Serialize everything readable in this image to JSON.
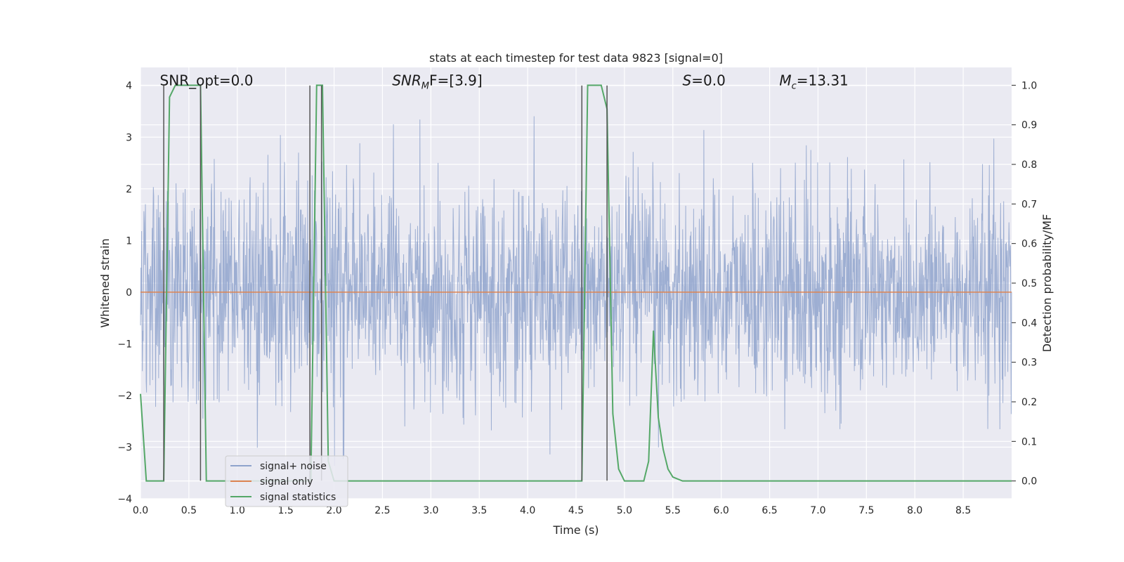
{
  "chart_data": {
    "type": "line",
    "title": "stats at each timestep for test data 9823 [signal=0]",
    "xlabel": "Time (s)",
    "ylabel": "Whitened strain",
    "y2label": "Detection probability/MF",
    "xlim": [
      0,
      9.0
    ],
    "ylim": [
      -4.0,
      4.35
    ],
    "y2lim": [
      -0.045,
      1.045
    ],
    "xticks": [
      0.0,
      0.5,
      1.0,
      1.5,
      2.0,
      2.5,
      3.0,
      3.5,
      4.0,
      4.5,
      5.0,
      5.5,
      6.0,
      6.5,
      7.0,
      7.5,
      8.0,
      8.5
    ],
    "yticks": [
      -4,
      -3,
      -2,
      -1,
      0,
      1,
      2,
      3,
      4
    ],
    "y2ticks": [
      0.0,
      0.1,
      0.2,
      0.3,
      0.4,
      0.5,
      0.6,
      0.7,
      0.8,
      0.9,
      1.0
    ],
    "grid": true,
    "legend_position": "lower-left",
    "annotations": [
      {
        "id": "snr-opt",
        "text": "SNR_opt=0.0",
        "x": 0.2,
        "y": 4.0
      },
      {
        "id": "snr-mf",
        "base": "SNR",
        "sub": "M",
        "rest": "F=[3.9]",
        "x": 2.6,
        "y": 4.0
      },
      {
        "id": "s-value",
        "base": "S",
        "rest": "=0.0",
        "x": 5.6,
        "y": 4.0
      },
      {
        "id": "mc-value",
        "base": "M",
        "sub": "c",
        "rest": "=13.31",
        "x": 6.6,
        "y": 4.0
      }
    ],
    "vlines": [
      {
        "x": 0.24,
        "y_from": -3.65,
        "y_to": 4.0
      },
      {
        "x": 0.62,
        "y_from": -3.65,
        "y_to": 4.0
      },
      {
        "x": 1.75,
        "y_from": -3.65,
        "y_to": 4.0
      },
      {
        "x": 1.87,
        "y_from": -3.65,
        "y_to": 4.0
      },
      {
        "x": 4.56,
        "y_from": -3.65,
        "y_to": 4.0
      },
      {
        "x": 4.82,
        "y_from": -3.65,
        "y_to": 4.0
      }
    ],
    "series": [
      {
        "name": "signal+ noise",
        "color": "#8fa3cc",
        "kind": "noise",
        "sample_rate": 256,
        "sigma": 1.0,
        "clip": [
          -3.8,
          3.9
        ]
      },
      {
        "name": "signal only",
        "color": "#dd8452",
        "kind": "line",
        "x": [
          0.0,
          9.0
        ],
        "y": [
          0.0,
          0.0
        ]
      },
      {
        "name": "signal statistics",
        "color": "#55a868",
        "kind": "line",
        "axis": "right",
        "x": [
          0.0,
          0.06,
          0.12,
          0.18,
          0.24,
          0.3,
          0.36,
          0.42,
          0.48,
          0.54,
          0.62,
          0.68,
          0.74,
          1.0,
          1.5,
          1.7,
          1.76,
          1.82,
          1.88,
          1.94,
          2.0,
          2.5,
          3.0,
          3.5,
          4.0,
          4.5,
          4.56,
          4.62,
          4.7,
          4.76,
          4.82,
          4.88,
          4.94,
          5.0,
          5.1,
          5.2,
          5.25,
          5.3,
          5.35,
          5.4,
          5.45,
          5.5,
          5.6,
          6.0,
          6.5,
          7.0,
          7.5,
          8.0,
          8.5,
          9.0
        ],
        "y": [
          0.22,
          0.0,
          0.0,
          0.0,
          0.0,
          0.97,
          1.0,
          1.0,
          1.0,
          1.0,
          1.0,
          0.0,
          0.0,
          0.0,
          0.0,
          0.0,
          0.0,
          1.0,
          1.0,
          0.05,
          0.0,
          0.0,
          0.0,
          0.0,
          0.0,
          0.0,
          0.0,
          1.0,
          1.0,
          1.0,
          0.94,
          0.17,
          0.03,
          0.0,
          0.0,
          0.0,
          0.05,
          0.38,
          0.16,
          0.08,
          0.03,
          0.01,
          0.0,
          0.0,
          0.0,
          0.0,
          0.0,
          0.0,
          0.0,
          0.0
        ]
      }
    ]
  }
}
